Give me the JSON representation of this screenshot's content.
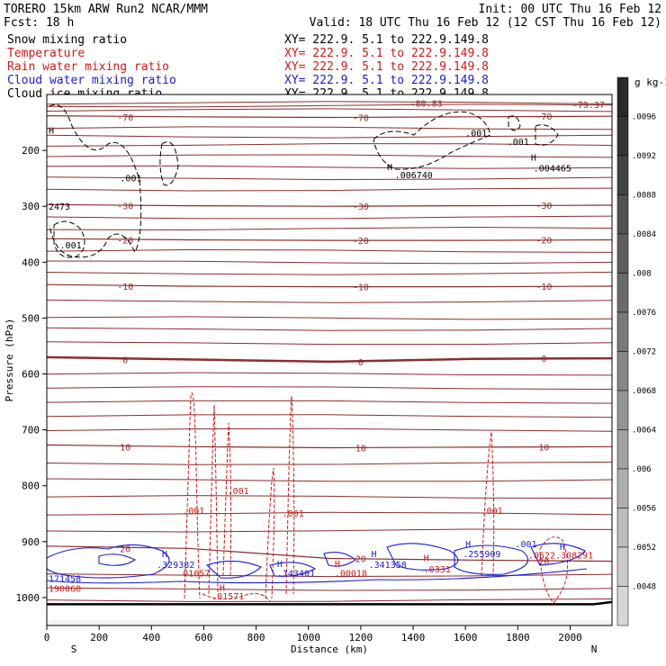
{
  "header": {
    "title_left": "TORERO  15km ARW   Run2   NCAR/MMM",
    "init": "Init: 00 UTC Thu 16 Feb 12",
    "fcst": "Fcst:   18 h",
    "valid": "Valid: 18 UTC Thu 16 Feb 12 (12 CST Thu 16 Feb 12)"
  },
  "fields": [
    {
      "name": "Snow mixing ratio",
      "xy": "XY= 222.9.  5.1 to 222.9.149.8",
      "color": "#000000"
    },
    {
      "name": "Temperature",
      "xy": "XY= 222.9.  5.1 to 222.9.149.8",
      "color": "#d11919"
    },
    {
      "name": "Rain water mixing ratio",
      "xy": "XY= 222.9.  5.1 to 222.9.149.8",
      "color": "#d11919"
    },
    {
      "name": "Cloud water mixing ratio",
      "xy": "XY= 222.9.  5.1 to 222.9.149.8",
      "color": "#1a1ad6"
    },
    {
      "name": "Cloud ice mixing ratio",
      "xy": "XY= 222.9.  5.1 to 222.9.149.8",
      "color": "#000000"
    }
  ],
  "chart_data": {
    "type": "cross-section contour",
    "xlabel": "Distance (km)",
    "ylabel": "Pressure (hPa)",
    "x_ticks": [
      0,
      200,
      400,
      600,
      800,
      1000,
      1200,
      1400,
      1600,
      1800,
      2000
    ],
    "y_ticks": [
      200,
      300,
      400,
      500,
      600,
      700,
      800,
      900,
      1000
    ],
    "xlim": [
      0,
      2160
    ],
    "ylim": [
      1050,
      100
    ],
    "x_endpoints": {
      "left": "S",
      "right": "N"
    },
    "temperature_contours": [
      {
        "value": -70,
        "label": "-70",
        "y": [
          138,
          140,
          141,
          140,
          139
        ]
      },
      {
        "value": -30,
        "label": "-30",
        "y": [
          297,
          299,
          300,
          299,
          298
        ]
      },
      {
        "value": -20,
        "label": "-20",
        "y": [
          358,
          360,
          361,
          361,
          360
        ]
      },
      {
        "value": -10,
        "label": "-10",
        "y": [
          440,
          443,
          444,
          444,
          443
        ]
      },
      {
        "value": 0,
        "label": "0",
        "y": [
          570,
          574,
          578,
          573,
          572
        ]
      },
      {
        "value": 10,
        "label": "10",
        "y": [
          727,
          730,
          732,
          731,
          730
        ]
      },
      {
        "value": 20,
        "label": "20",
        "y": [
          908,
          912,
          930,
          933,
          935
        ]
      }
    ],
    "temperature_extra_labels": [
      "-79.37",
      "-80.83"
    ],
    "colorbar": {
      "unit": "g kg-1",
      "labels": [
        ".0096",
        ".0092",
        ".0088",
        ".0084",
        ".008",
        ".0076",
        ".0072",
        ".0068",
        ".0064",
        ".006",
        ".0056",
        ".0052",
        ".0048"
      ]
    },
    "snow_labels": [
      {
        "text": ".001",
        "x": 280,
        "y": 255
      },
      {
        "text": ".001",
        "x": 1600,
        "y": 175
      },
      {
        "text": ".001",
        "x": 1760,
        "y": 190
      },
      {
        "text": ".001",
        "x": 50,
        "y": 375
      },
      {
        "text": "2473",
        "x": 0,
        "y": 306
      },
      {
        "text": ".006740",
        "x": 1330,
        "y": 250
      },
      {
        "text": ".004465",
        "x": 1860,
        "y": 238
      },
      {
        "text": "H",
        "x": 1300,
        "y": 235
      },
      {
        "text": "H",
        "x": 1850,
        "y": 218
      },
      {
        "text": "H",
        "x": 0,
        "y": 170
      }
    ],
    "rain_labels": [
      {
        "text": ".001",
        "x": 520,
        "y": 850
      },
      {
        "text": ".001",
        "x": 690,
        "y": 815
      },
      {
        "text": ".001",
        "x": 900,
        "y": 855
      },
      {
        "text": ".001",
        "x": 1660,
        "y": 850
      },
      {
        "text": "01657",
        "x": 520,
        "y": 962
      },
      {
        "text": ".00018",
        "x": 1100,
        "y": 962
      },
      {
        "text": ".0331",
        "x": 1440,
        "y": 955
      },
      {
        "text": ".0622.308291",
        "x": 1840,
        "y": 930
      },
      {
        "text": ".01571",
        "x": 630,
        "y": 1003
      },
      {
        "text": "190060",
        "x": 0,
        "y": 990
      },
      {
        "text": "H",
        "x": 660,
        "y": 988
      },
      {
        "text": "H",
        "x": 1440,
        "y": 935
      },
      {
        "text": "H",
        "x": 1100,
        "y": 945
      }
    ],
    "cloud_water_labels": [
      {
        "text": ".329382",
        "x": 420,
        "y": 947
      },
      {
        "text": ".143401",
        "x": 880,
        "y": 962
      },
      {
        "text": ".341358",
        "x": 1230,
        "y": 947
      },
      {
        "text": ".255909",
        "x": 1590,
        "y": 928
      },
      {
        "text": ".001",
        "x": 1790,
        "y": 910
      },
      {
        "text": "171458",
        "x": 0,
        "y": 972
      },
      {
        "text": "H",
        "x": 440,
        "y": 928
      },
      {
        "text": "H",
        "x": 880,
        "y": 945
      },
      {
        "text": "H",
        "x": 1240,
        "y": 928
      },
      {
        "text": "H",
        "x": 1600,
        "y": 910
      },
      {
        "text": "H",
        "x": 1960,
        "y": 915
      }
    ]
  }
}
